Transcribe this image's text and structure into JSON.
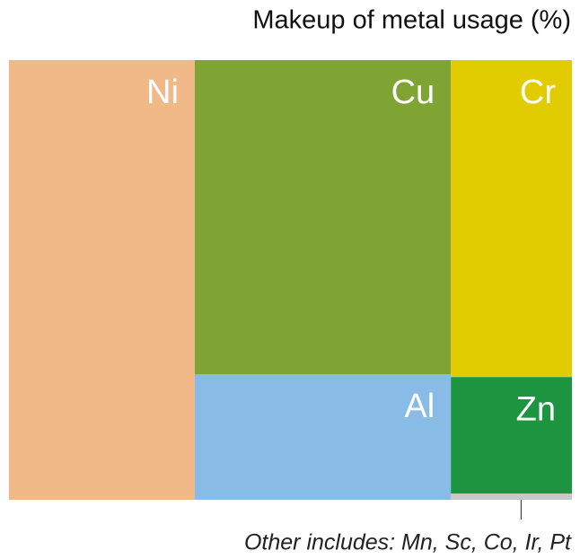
{
  "chart_data": {
    "type": "treemap",
    "title": "Makeup of metal usage (%)",
    "categories": [
      "Ni",
      "Cu",
      "Cr",
      "Al",
      "Zn",
      null
    ],
    "values": [
      33,
      32.5,
      15.5,
      13,
      5.7,
      0.3
    ],
    "colors": [
      "#f0b987",
      "#80a433",
      "#e0cc00",
      "#88bbe6",
      "#1c9440",
      "#c8c8c8"
    ],
    "annotation": "Other includes: Mn, Sc, Co, Ir, Pt"
  }
}
